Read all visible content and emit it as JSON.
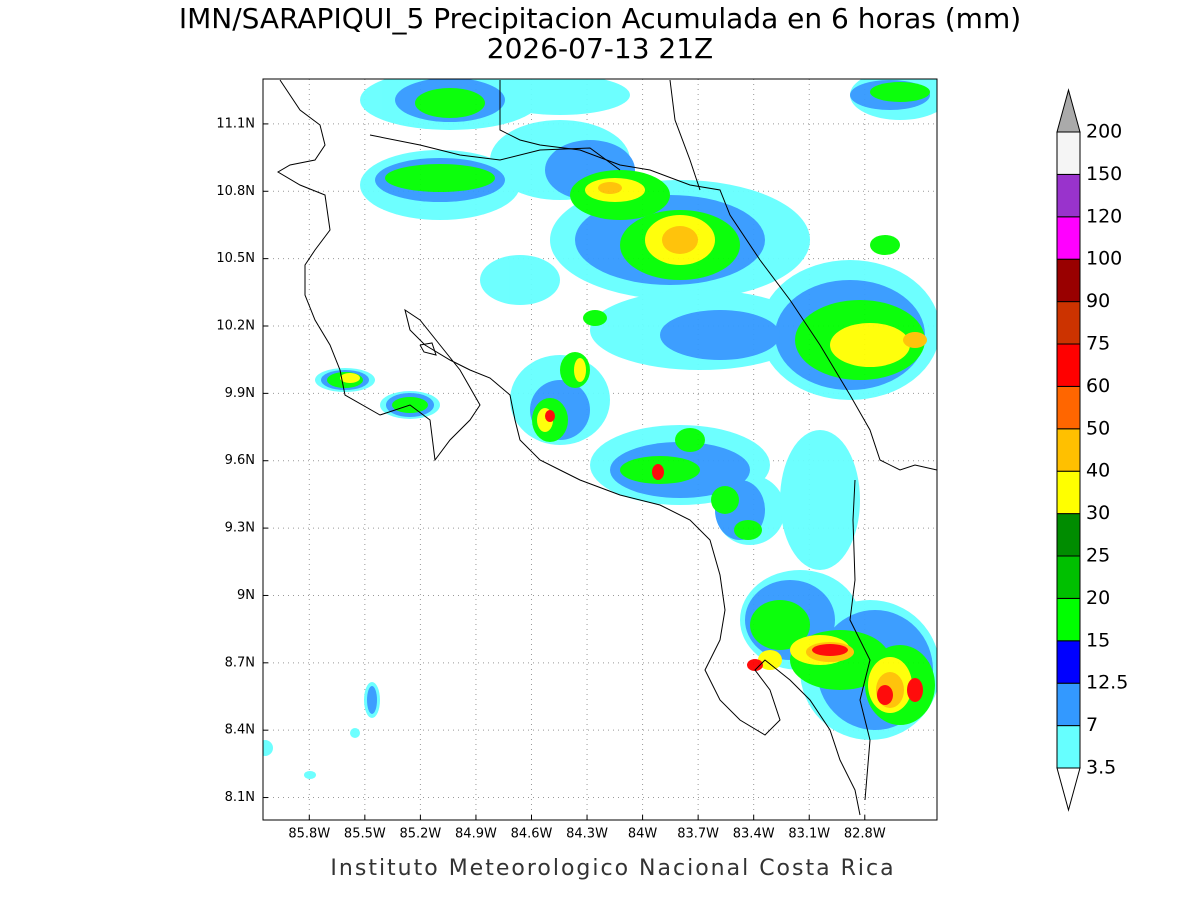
{
  "map_data": {
    "title": "IMN/SARAPIQUI_5 Precipitacion Acumulada en 6 horas (mm)",
    "subtitle": "2026-07-13 21Z",
    "footer": "Instituto Meteorologico Nacional Costa Rica",
    "lonlim": [
      -86.05,
      -82.41
    ],
    "latlim": [
      8.0,
      11.3
    ],
    "lonticks": [
      {
        "value": -85.8,
        "label": "85.8W"
      },
      {
        "value": -85.5,
        "label": "85.5W"
      },
      {
        "value": -85.2,
        "label": "85.2W"
      },
      {
        "value": -84.9,
        "label": "84.9W"
      },
      {
        "value": -84.6,
        "label": "84.6W"
      },
      {
        "value": -84.3,
        "label": "84.3W"
      },
      {
        "value": -84.0,
        "label": "84W"
      },
      {
        "value": -83.7,
        "label": "83.7W"
      },
      {
        "value": -83.4,
        "label": "83.4W"
      },
      {
        "value": -83.1,
        "label": "83.1W"
      },
      {
        "value": -82.8,
        "label": "82.8W"
      }
    ],
    "latticks": [
      {
        "value": 8.1,
        "label": "8.1N"
      },
      {
        "value": 8.4,
        "label": "8.4N"
      },
      {
        "value": 8.7,
        "label": "8.7N"
      },
      {
        "value": 9.0,
        "label": "9N"
      },
      {
        "value": 9.3,
        "label": "9.3N"
      },
      {
        "value": 9.6,
        "label": "9.6N"
      },
      {
        "value": 9.9,
        "label": "9.9N"
      },
      {
        "value": 10.2,
        "label": "10.2N"
      },
      {
        "value": 10.5,
        "label": "10.5N"
      },
      {
        "value": 10.8,
        "label": "10.8N"
      },
      {
        "value": 11.1,
        "label": "11.1N"
      }
    ],
    "colorbar": {
      "levels": [
        3.5,
        7,
        12.5,
        15,
        20,
        25,
        30,
        40,
        50,
        60,
        75,
        90,
        100,
        120,
        150,
        200
      ],
      "colors": [
        "#66ffff",
        "#3399ff",
        "#0000ff",
        "#00ff00",
        "#00c000",
        "#008c00",
        "#ffff00",
        "#ffc000",
        "#ff6600",
        "#ff0000",
        "#cc3300",
        "#990000",
        "#ff00ff",
        "#9933cc",
        "#f5f5f5"
      ],
      "under_color": "#ffffff",
      "over_color": "#aaaaaa"
    }
  }
}
